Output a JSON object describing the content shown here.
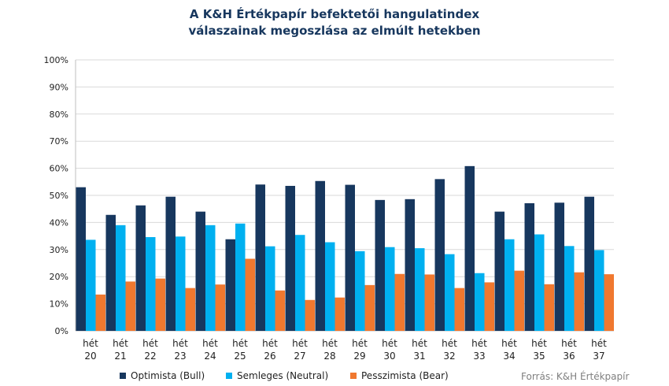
{
  "colors": {
    "bull": "#17375e",
    "neutral": "#00b0f0",
    "bear": "#f0782f"
  },
  "chart_data": {
    "type": "bar",
    "title": "A K&H Értékpapír befektetői hangulatindex\nválaszainak megoszlása az elmúlt hetekben",
    "title_lines": [
      "A K&H Értékpapír befektetői hangulatindex",
      "válaszainak megoszlása az elmúlt hetekben"
    ],
    "categories": [
      [
        "hét",
        "20"
      ],
      [
        "hét",
        "21"
      ],
      [
        "hét",
        "22"
      ],
      [
        "hét",
        "23"
      ],
      [
        "hét",
        "24"
      ],
      [
        "hét",
        "25"
      ],
      [
        "hét",
        "26"
      ],
      [
        "hét",
        "27"
      ],
      [
        "hét",
        "28"
      ],
      [
        "hét",
        "29"
      ],
      [
        "hét",
        "30"
      ],
      [
        "hét",
        "31"
      ],
      [
        "hét",
        "32"
      ],
      [
        "hét",
        "33"
      ],
      [
        "hét",
        "34"
      ],
      [
        "hét",
        "35"
      ],
      [
        "hét",
        "36"
      ],
      [
        "hét",
        "37"
      ]
    ],
    "yticks": [
      "0%",
      "10%",
      "20%",
      "30%",
      "40%",
      "50%",
      "60%",
      "70%",
      "80%",
      "90%",
      "100%"
    ],
    "ylim": [
      0,
      100
    ],
    "grid": true,
    "legend_position": "bottom",
    "series": [
      {
        "name": "Optimista (Bull)",
        "values": [
          53,
          42.8,
          46.3,
          49.5,
          44,
          33.8,
          54,
          53.5,
          55.3,
          53.9,
          48.3,
          48.6,
          56,
          60.8,
          44,
          47.1,
          47.3,
          49.5
        ]
      },
      {
        "name": "Semleges (Neutral)",
        "values": [
          33.6,
          39,
          34.6,
          34.8,
          39,
          39.6,
          31.2,
          35.4,
          32.7,
          29.4,
          30.9,
          30.5,
          28.3,
          21.3,
          33.8,
          35.6,
          31.3,
          29.8
        ]
      },
      {
        "name": "Pesszimista (Bear)",
        "values": [
          13.4,
          18.2,
          19.3,
          15.8,
          17.1,
          26.6,
          14.9,
          11.4,
          12.3,
          16.9,
          21,
          20.8,
          15.8,
          17.9,
          22.2,
          17.2,
          21.6,
          20.9
        ]
      }
    ]
  },
  "source": "Forrás: K&H Értékpapír"
}
